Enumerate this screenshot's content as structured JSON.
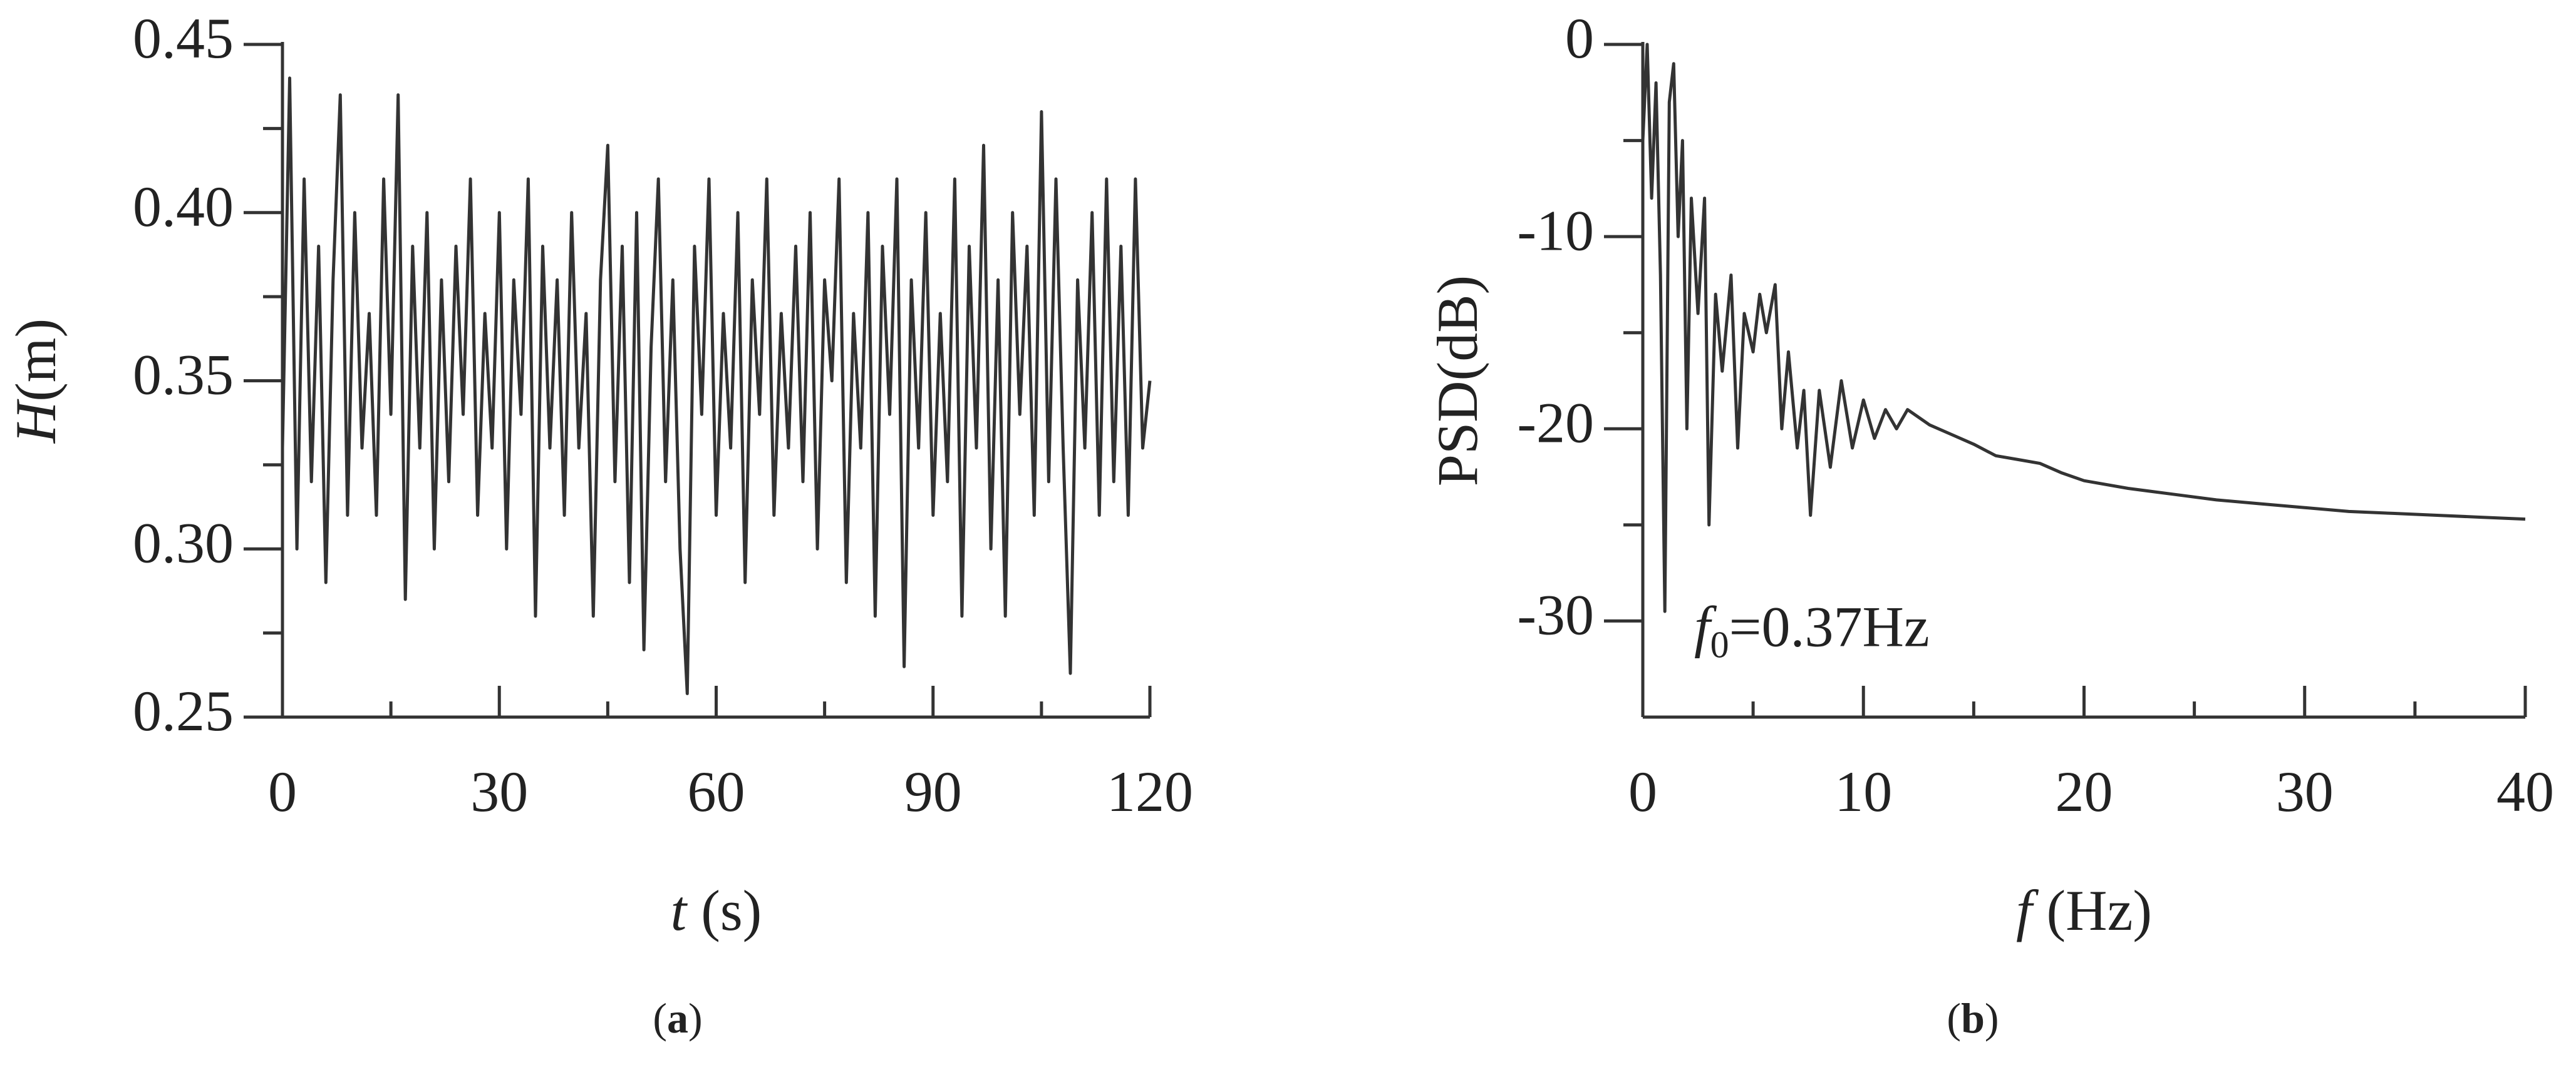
{
  "chart_data": [
    {
      "type": "line",
      "color": "#333333",
      "caption": {
        "open": "(",
        "letter": "a",
        "close": ")"
      },
      "xlabel": {
        "var": "t",
        "unit": " (s)"
      },
      "ylabel": {
        "var": "H",
        "unit": "(m)"
      },
      "xlim": [
        0,
        120
      ],
      "ylim": [
        0.25,
        0.45
      ],
      "xticks": [
        0,
        30,
        60,
        90,
        120
      ],
      "xminor": [
        15,
        45,
        75,
        105
      ],
      "yticks": [
        0.25,
        {
          "value": 0.3,
          "label": "0.30"
        },
        0.35,
        {
          "value": 0.4,
          "label": "0.40"
        },
        0.45
      ],
      "yminor": [
        0.275,
        0.325,
        0.375,
        0.425
      ],
      "x": [
        0,
        1,
        2,
        3,
        4,
        5,
        6,
        7,
        8,
        9,
        10,
        11,
        12,
        13,
        14,
        15,
        16,
        17,
        18,
        19,
        20,
        21,
        22,
        23,
        24,
        25,
        26,
        27,
        28,
        29,
        30,
        31,
        32,
        33,
        34,
        35,
        36,
        37,
        38,
        39,
        40,
        41,
        42,
        43,
        44,
        45,
        46,
        47,
        48,
        49,
        50,
        51,
        52,
        53,
        54,
        55,
        56,
        57,
        58,
        59,
        60,
        61,
        62,
        63,
        64,
        65,
        66,
        67,
        68,
        69,
        70,
        71,
        72,
        73,
        74,
        75,
        76,
        77,
        78,
        79,
        80,
        81,
        82,
        83,
        84,
        85,
        86,
        87,
        88,
        89,
        90,
        91,
        92,
        93,
        94,
        95,
        96,
        97,
        98,
        99,
        100,
        101,
        102,
        103,
        104,
        105,
        106,
        107,
        108,
        109,
        110,
        111,
        112,
        113,
        114,
        115,
        116,
        117,
        118,
        119,
        120
      ],
      "values": [
        0.33,
        0.44,
        0.3,
        0.41,
        0.32,
        0.39,
        0.29,
        0.38,
        0.435,
        0.31,
        0.4,
        0.33,
        0.37,
        0.31,
        0.41,
        0.34,
        0.435,
        0.285,
        0.39,
        0.33,
        0.4,
        0.3,
        0.38,
        0.32,
        0.39,
        0.34,
        0.41,
        0.31,
        0.37,
        0.33,
        0.4,
        0.3,
        0.38,
        0.34,
        0.41,
        0.28,
        0.39,
        0.33,
        0.38,
        0.31,
        0.4,
        0.33,
        0.37,
        0.28,
        0.38,
        0.42,
        0.32,
        0.39,
        0.29,
        0.4,
        0.27,
        0.36,
        0.41,
        0.32,
        0.38,
        0.3,
        0.257,
        0.39,
        0.34,
        0.41,
        0.31,
        0.37,
        0.33,
        0.4,
        0.29,
        0.38,
        0.34,
        0.41,
        0.31,
        0.37,
        0.33,
        0.39,
        0.32,
        0.4,
        0.3,
        0.38,
        0.35,
        0.41,
        0.29,
        0.37,
        0.33,
        0.4,
        0.28,
        0.39,
        0.34,
        0.41,
        0.265,
        0.38,
        0.33,
        0.4,
        0.31,
        0.37,
        0.32,
        0.41,
        0.28,
        0.39,
        0.33,
        0.42,
        0.3,
        0.38,
        0.28,
        0.4,
        0.34,
        0.39,
        0.31,
        0.43,
        0.32,
        0.41,
        0.33,
        0.263,
        0.38,
        0.33,
        0.4,
        0.31,
        0.41,
        0.32,
        0.39,
        0.31,
        0.41,
        0.33,
        0.35
      ]
    },
    {
      "type": "line",
      "color": "#333333",
      "caption": {
        "open": "(",
        "letter": "b",
        "close": ")"
      },
      "xlabel": {
        "var": "f",
        "unit": " (Hz)"
      },
      "ylabel": {
        "var": "",
        "unit": "PSD(dB)"
      },
      "annotation": {
        "var": "f",
        "sub": "0",
        "text": "=0.37Hz"
      },
      "xlim": [
        0,
        40
      ],
      "ylim": [
        -35,
        0
      ],
      "xticks": [
        0,
        10,
        20,
        30,
        40
      ],
      "xminor": [
        5,
        15,
        25,
        35
      ],
      "yticks": [
        -30,
        -20,
        -10,
        0
      ],
      "yminor": [
        -25,
        -15,
        -5
      ],
      "x": [
        0,
        0.2,
        0.4,
        0.6,
        0.8,
        1,
        1.2,
        1.4,
        1.6,
        1.8,
        2,
        2.2,
        2.5,
        2.8,
        3,
        3.3,
        3.6,
        4,
        4.3,
        4.6,
        5,
        5.3,
        5.6,
        6,
        6.3,
        6.6,
        7,
        7.3,
        7.6,
        8,
        8.5,
        9,
        9.5,
        10,
        10.5,
        11,
        11.5,
        12,
        13,
        14,
        15,
        16,
        17,
        18,
        19,
        20,
        22,
        24,
        26,
        28,
        30,
        32,
        34,
        36,
        38,
        40
      ],
      "values": [
        -5,
        0,
        -8,
        -2,
        -12,
        -29.5,
        -3,
        -1,
        -10,
        -5,
        -20,
        -8,
        -14,
        -8,
        -25,
        -13,
        -17,
        -12,
        -21,
        -14,
        -16,
        -13,
        -15,
        -12.5,
        -20,
        -16,
        -21,
        -18,
        -24.5,
        -18,
        -22,
        -17.5,
        -21,
        -18.5,
        -20.5,
        -19,
        -20,
        -19,
        -19.8,
        -20.3,
        -20.8,
        -21.4,
        -21.6,
        -21.8,
        -22.3,
        -22.7,
        -23.1,
        -23.4,
        -23.7,
        -23.9,
        -24.1,
        -24.3,
        -24.4,
        -24.5,
        -24.6,
        -24.7
      ]
    }
  ]
}
